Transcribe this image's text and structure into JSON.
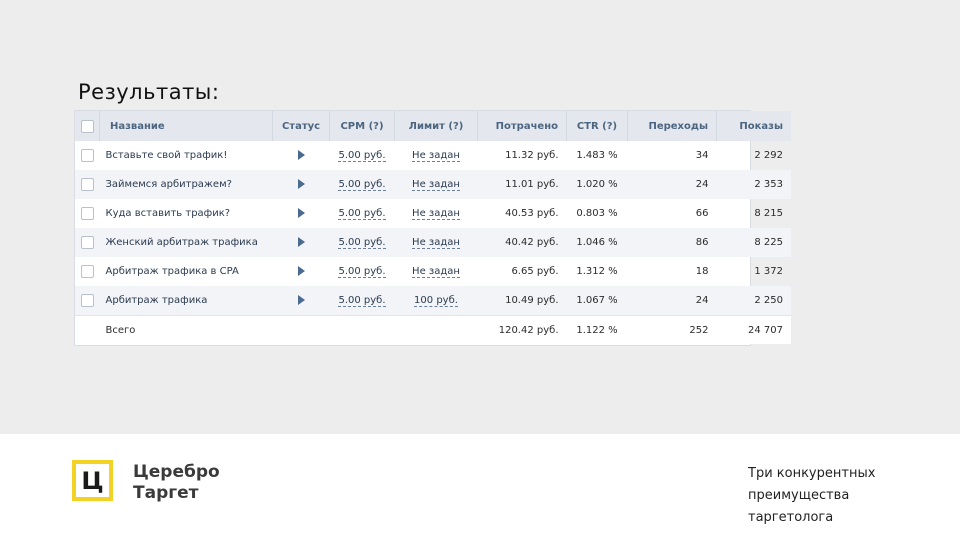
{
  "heading": "Результаты:",
  "table": {
    "columns": {
      "name": "Название",
      "status": "Статус",
      "cpm": "CPM (?)",
      "limit": "Лимит (?)",
      "spent": "Потрачено",
      "ctr": "CTR (?)",
      "clicks": "Переходы",
      "views": "Показы"
    },
    "rows": [
      {
        "name": "Вставьте свой трафик!",
        "cpm": "5.00 руб.",
        "limit": "Не задан",
        "spent": "11.32 руб.",
        "ctr": "1.483 %",
        "clicks": "34",
        "views": "2 292"
      },
      {
        "name": "Займемся арбитражем?",
        "cpm": "5.00 руб.",
        "limit": "Не задан",
        "spent": "11.01 руб.",
        "ctr": "1.020 %",
        "clicks": "24",
        "views": "2 353"
      },
      {
        "name": "Куда вставить трафик?",
        "cpm": "5.00 руб.",
        "limit": "Не задан",
        "spent": "40.53 руб.",
        "ctr": "0.803 %",
        "clicks": "66",
        "views": "8 215"
      },
      {
        "name": "Женский арбитраж трафика",
        "cpm": "5.00 руб.",
        "limit": "Не задан",
        "spent": "40.42 руб.",
        "ctr": "1.046 %",
        "clicks": "86",
        "views": "8 225"
      },
      {
        "name": "Арбитраж трафика в CPA",
        "cpm": "5.00 руб.",
        "limit": "Не задан",
        "spent": "6.65 руб.",
        "ctr": "1.312 %",
        "clicks": "18",
        "views": "1 372"
      },
      {
        "name": "Арбитраж трафика",
        "cpm": "5.00 руб.",
        "limit": "100 руб.",
        "spent": "10.49 руб.",
        "ctr": "1.067 %",
        "clicks": "24",
        "views": "2 250"
      }
    ],
    "total": {
      "label": "Всего",
      "spent": "120.42 руб.",
      "ctr": "1.122 %",
      "clicks": "252",
      "views": "24 707"
    }
  },
  "logo": {
    "line1": "Церебро",
    "line2": "Таргет",
    "glyph": "Ц"
  },
  "tagline": {
    "line1": "Три конкурентных",
    "line2": "преимущества",
    "line3": "таргетолога"
  },
  "colors": {
    "accent": "#f2d325",
    "header_bg": "#e4e8ee",
    "link": "#2b3b4f"
  }
}
